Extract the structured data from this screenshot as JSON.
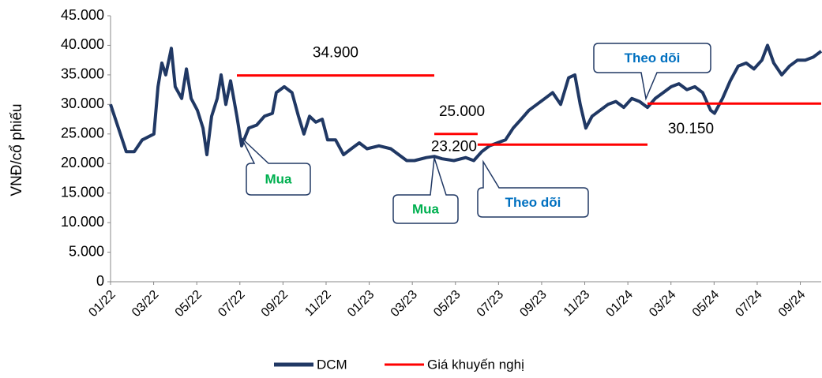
{
  "chart_data": {
    "type": "line",
    "y_label": "VNĐ/cổ phiếu",
    "xlim": [
      0,
      32.97
    ],
    "xticks": [
      {
        "value": 0,
        "label": "01/22"
      },
      {
        "value": 2,
        "label": "03/22"
      },
      {
        "value": 4,
        "label": "05/22"
      },
      {
        "value": 6,
        "label": "07/22"
      },
      {
        "value": 8,
        "label": "09/22"
      },
      {
        "value": 10,
        "label": "11/22"
      },
      {
        "value": 12,
        "label": "01/23"
      },
      {
        "value": 14,
        "label": "03/23"
      },
      {
        "value": 16,
        "label": "05/23"
      },
      {
        "value": 18,
        "label": "07/23"
      },
      {
        "value": 20,
        "label": "09/23"
      },
      {
        "value": 22,
        "label": "11/23"
      },
      {
        "value": 24,
        "label": "01/24"
      },
      {
        "value": 26,
        "label": "03/24"
      },
      {
        "value": 28,
        "label": "05/24"
      },
      {
        "value": 30,
        "label": "07/24"
      },
      {
        "value": 32,
        "label": "09/24"
      }
    ],
    "ylim": [
      0,
      45000
    ],
    "yticks": [
      0,
      {
        "value": 5000,
        "label": "5.000"
      },
      {
        "value": 10000,
        "label": "10.000"
      },
      {
        "value": 15000,
        "label": "15.000"
      },
      {
        "value": 20000,
        "label": "20.000"
      },
      {
        "value": 25000,
        "label": "25.000"
      },
      {
        "value": 30000,
        "label": "30.000"
      },
      {
        "value": 35000,
        "label": "35.000"
      },
      {
        "value": 40000,
        "label": "40.000"
      },
      {
        "value": 45000,
        "label": "45.000"
      }
    ],
    "series": [
      {
        "name": "DCM",
        "color": "#203864",
        "x": [
          0,
          0.73,
          1.1,
          1.47,
          2.01,
          2.2,
          2.38,
          2.56,
          2.82,
          3.0,
          3.3,
          3.52,
          3.74,
          4.03,
          4.29,
          4.47,
          4.69,
          4.95,
          5.13,
          5.35,
          5.57,
          5.86,
          6.08,
          6.41,
          6.78,
          7.14,
          7.51,
          7.69,
          8.06,
          8.42,
          8.72,
          8.97,
          9.23,
          9.52,
          9.82,
          10.07,
          10.44,
          10.81,
          11.17,
          11.54,
          11.9,
          12.45,
          13.0,
          13.37,
          13.74,
          14.1,
          14.65,
          15.02,
          15.38,
          15.93,
          16.48,
          16.85,
          17.22,
          17.58,
          17.95,
          18.32,
          18.68,
          19.05,
          19.41,
          19.78,
          20.15,
          20.51,
          20.88,
          21.25,
          21.54,
          21.79,
          22.05,
          22.34,
          22.71,
          23.08,
          23.44,
          23.81,
          24.18,
          24.54,
          24.91,
          25.27,
          25.64,
          26.01,
          26.37,
          26.74,
          27.11,
          27.47,
          27.84,
          28.02,
          28.39,
          28.75,
          29.12,
          29.49,
          29.85,
          30.22,
          30.48,
          30.77,
          31.14,
          31.5,
          31.87,
          32.23,
          32.6,
          32.97
        ],
        "values": [
          30000,
          22000,
          22000,
          24000,
          25000,
          33000,
          37000,
          35000,
          39500,
          33000,
          31000,
          36000,
          31000,
          29000,
          26000,
          21500,
          28000,
          31000,
          35000,
          30000,
          34000,
          28000,
          23000,
          26000,
          26500,
          28000,
          28500,
          32000,
          33000,
          32000,
          28000,
          25000,
          28000,
          27000,
          27500,
          24000,
          24000,
          21500,
          22500,
          23500,
          22500,
          23000,
          22500,
          21500,
          20500,
          20500,
          21000,
          21200,
          20800,
          20500,
          21000,
          20500,
          22000,
          23000,
          23500,
          24000,
          26000,
          27500,
          29000,
          30000,
          31000,
          32000,
          30000,
          34500,
          35000,
          30000,
          26000,
          28000,
          29000,
          30000,
          30500,
          29500,
          31000,
          30500,
          29500,
          31000,
          32000,
          33000,
          33500,
          32500,
          33000,
          32000,
          29000,
          28500,
          31000,
          34000,
          36500,
          37000,
          36000,
          37500,
          40000,
          37000,
          35000,
          36500,
          37500,
          37500,
          38000,
          39000
        ]
      },
      {
        "name": "Giá khuyến nghị",
        "color": "#ff0000",
        "x": [
          5.86,
          15.02,
          15.02,
          15.02,
          17.03,
          17.03,
          17.03,
          24.91,
          24.91,
          24.91,
          32.97
        ],
        "values": [
          34900,
          34900,
          null,
          25000,
          25000,
          null,
          23200,
          23200,
          null,
          30150,
          30150
        ],
        "value_labels": [
          "34.900",
          null,
          null,
          "25.000",
          null,
          null,
          "23.200",
          null,
          null,
          "30.150",
          null
        ]
      }
    ],
    "annotations": [
      {
        "text": "Mua",
        "color": "#00b050"
      },
      {
        "text": "Mua",
        "color": "#00b050"
      },
      {
        "text": "Theo dõi",
        "color": "#0070c0"
      },
      {
        "text": "Theo dõi",
        "color": "#0070c0"
      }
    ],
    "legend": "bottom"
  }
}
